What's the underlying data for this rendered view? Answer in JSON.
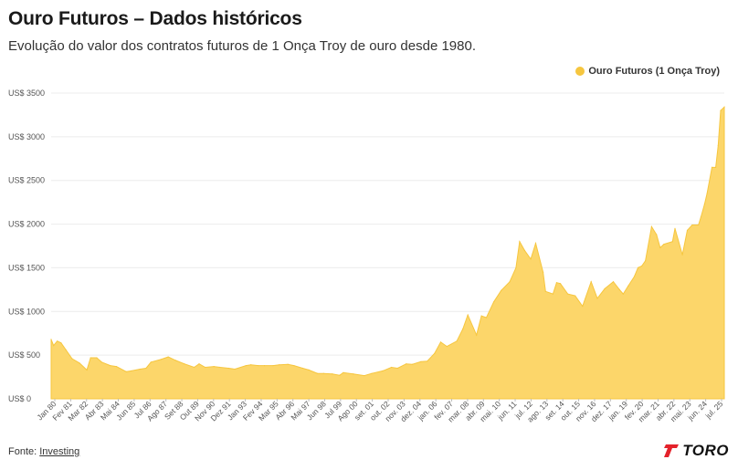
{
  "header": {
    "title": "Ouro Futuros – Dados históricos",
    "subtitle": "Evolução do valor dos contratos futuros de 1 Onça Troy de ouro desde 1980."
  },
  "footer": {
    "source_label": "Fonte: ",
    "source_link": "Investing",
    "brand": "TORO"
  },
  "colors": {
    "series": "#f6c63f",
    "area_fill": "#fcd66a",
    "brand_red": "#e4222b"
  },
  "chart_data": {
    "type": "area",
    "title": "Ouro Futuros – Dados históricos",
    "subtitle": "Evolução do valor dos contratos futuros de 1 Onça Troy de ouro desde 1980.",
    "xlabel": "",
    "ylabel": "",
    "ylim": [
      0,
      3500
    ],
    "yticks": [
      0,
      500,
      1000,
      1500,
      2000,
      2500,
      3000,
      3500
    ],
    "y_tick_labels": [
      "US$ 0",
      "US$ 500",
      "US$ 1000",
      "US$ 1500",
      "US$ 2000",
      "US$ 2500",
      "US$ 3000",
      "US$ 3500"
    ],
    "x_tick_labels": [
      "Jan 80",
      "Fev 81",
      "Mar 82",
      "Abr 83",
      "Mai 84",
      "Jun 85",
      "Jul 86",
      "Ago 87",
      "Set 88",
      "Out 89",
      "Nov 90",
      "Dez 91",
      "Jan 93",
      "Fev 94",
      "Mar 95",
      "Abr 96",
      "Mai 97",
      "Jun 98",
      "Jul 99",
      "Ago 00",
      "set. 01",
      "out. 02",
      "nov. 03",
      "dez. 04",
      "jan. 06",
      "fev. 07",
      "mar. 08",
      "abr. 09",
      "mai. 10",
      "jun. 11",
      "jul. 12",
      "ago. 13",
      "set. 14",
      "out. 15",
      "nov. 16",
      "dez. 17",
      "jan. 19",
      "fev. 20",
      "mar. 21",
      "abr. 22",
      "mai. 23",
      "jun. 24",
      "jul. 25"
    ],
    "grid": true,
    "legend_position": "top-right",
    "series": [
      {
        "name": "Ouro Futuros (1 Onça Troy)",
        "x": [
          "1980-01",
          "1980-03",
          "1980-06",
          "1980-09",
          "1981-01",
          "1981-06",
          "1981-12",
          "1982-06",
          "1982-09",
          "1983-02",
          "1983-06",
          "1984-01",
          "1984-06",
          "1985-02",
          "1985-06",
          "1986-01",
          "1986-06",
          "1986-10",
          "1987-06",
          "1987-12",
          "1988-06",
          "1989-01",
          "1989-09",
          "1990-01",
          "1990-06",
          "1991-01",
          "1991-06",
          "1992-01",
          "1992-06",
          "1993-03",
          "1993-07",
          "1994-01",
          "1994-06",
          "1995-01",
          "1995-06",
          "1996-01",
          "1996-06",
          "1997-01",
          "1997-06",
          "1998-01",
          "1998-06",
          "1999-01",
          "1999-07",
          "1999-10",
          "2000-06",
          "2001-03",
          "2001-09",
          "2002-06",
          "2003-01",
          "2003-06",
          "2004-01",
          "2004-06",
          "2005-01",
          "2005-06",
          "2005-12",
          "2006-05",
          "2006-10",
          "2007-06",
          "2007-11",
          "2008-03",
          "2008-10",
          "2009-02",
          "2009-06",
          "2009-12",
          "2010-06",
          "2011-01",
          "2011-06",
          "2011-09",
          "2012-01",
          "2012-06",
          "2012-10",
          "2013-04",
          "2013-06",
          "2013-12",
          "2014-03",
          "2014-06",
          "2014-12",
          "2015-06",
          "2015-12",
          "2016-07",
          "2016-12",
          "2017-06",
          "2018-01",
          "2018-06",
          "2018-09",
          "2019-01",
          "2019-06",
          "2019-09",
          "2019-12",
          "2020-03",
          "2020-08",
          "2020-12",
          "2021-03",
          "2021-06",
          "2022-01",
          "2022-03",
          "2022-09",
          "2023-01",
          "2023-05",
          "2023-10",
          "2023-12",
          "2024-03",
          "2024-05",
          "2024-09",
          "2024-12",
          "2025-02",
          "2025-04",
          "2025-07"
        ],
        "values": [
          680,
          610,
          660,
          640,
          560,
          460,
          410,
          330,
          470,
          470,
          420,
          380,
          370,
          310,
          320,
          340,
          350,
          420,
          450,
          480,
          440,
          400,
          360,
          400,
          360,
          370,
          360,
          350,
          340,
          380,
          390,
          380,
          380,
          380,
          390,
          395,
          380,
          350,
          330,
          290,
          290,
          285,
          270,
          300,
          285,
          265,
          290,
          320,
          360,
          350,
          400,
          395,
          425,
          430,
          520,
          650,
          600,
          660,
          800,
          960,
          730,
          950,
          930,
          1110,
          1240,
          1340,
          1500,
          1800,
          1700,
          1600,
          1780,
          1450,
          1230,
          1200,
          1330,
          1320,
          1200,
          1180,
          1060,
          1340,
          1150,
          1260,
          1340,
          1250,
          1200,
          1290,
          1400,
          1500,
          1520,
          1580,
          1970,
          1880,
          1730,
          1770,
          1800,
          1950,
          1650,
          1930,
          1990,
          1990,
          2080,
          2230,
          2350,
          2650,
          2650,
          2900,
          3300,
          3340
        ]
      }
    ]
  }
}
